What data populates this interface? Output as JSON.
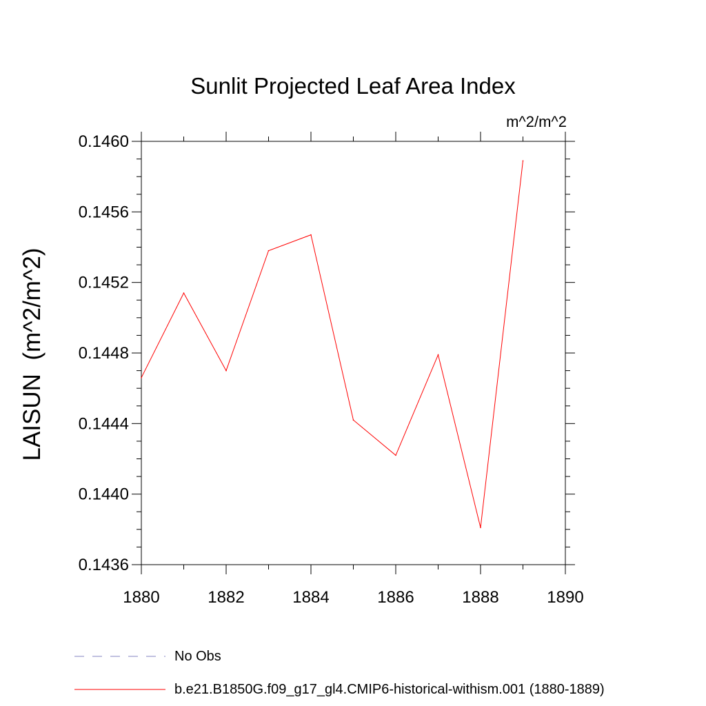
{
  "chart_data": {
    "type": "line",
    "title": "Sunlit Projected Leaf Area Index",
    "units_label": "m^2/m^2",
    "ylabel": "LAISUN  (m^2/m^2)",
    "xlabel": "",
    "xlim": [
      1880,
      1890
    ],
    "ylim": [
      0.1436,
      0.146
    ],
    "x_ticks": [
      "1880",
      "1882",
      "1884",
      "1886",
      "1888",
      "1890"
    ],
    "y_ticks": [
      "0.1436",
      "0.1440",
      "0.1444",
      "0.1448",
      "0.1452",
      "0.1456",
      "0.1460"
    ],
    "grid": false,
    "legend_position": "bottom",
    "series": [
      {
        "name": "b.e21.B1850G.f09_g17_gl4.CMIP6-historical-withism.001 (1880-1889)",
        "color": "#ff0000",
        "style": "solid",
        "x": [
          1880,
          1881,
          1882,
          1883,
          1884,
          1885,
          1886,
          1887,
          1888,
          1889
        ],
        "values": [
          0.14466,
          0.14514,
          0.1447,
          0.14538,
          0.14547,
          0.14442,
          0.14422,
          0.14479,
          0.14381,
          0.14589
        ]
      }
    ],
    "legend": [
      {
        "label": "No Obs",
        "color": "#8080c0",
        "style": "dashed"
      },
      {
        "label": "b.e21.B1850G.f09_g17_gl4.CMIP6-historical-withism.001 (1880-1889)",
        "color": "#ff0000",
        "style": "solid"
      }
    ]
  }
}
